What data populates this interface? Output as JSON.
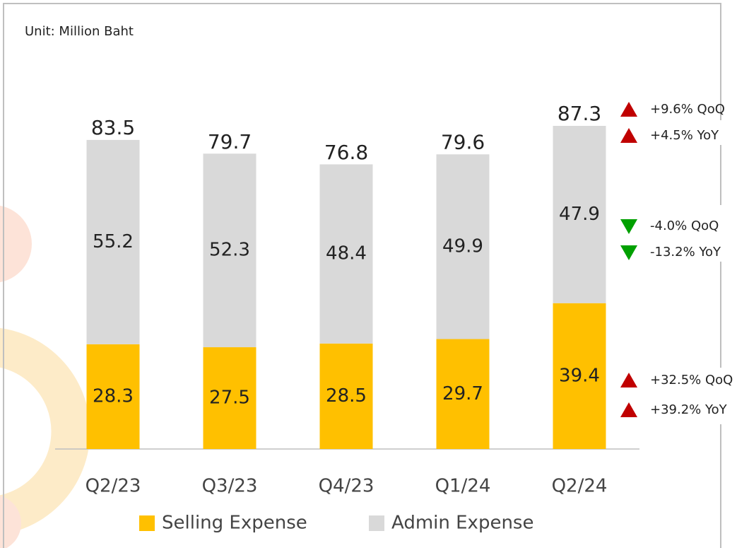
{
  "chart_data": {
    "type": "stacked_bar",
    "subtitle": "Unit: Million Baht",
    "categories": [
      "Q2/23",
      "Q3/23",
      "Q4/23",
      "Q1/24",
      "Q2/24"
    ],
    "series": [
      {
        "name": "Selling Expense",
        "color": "#FFC000",
        "values": [
          28.3,
          27.5,
          28.5,
          29.7,
          39.4
        ]
      },
      {
        "name": "Admin Expense",
        "color": "#D9D9D9",
        "values": [
          55.2,
          52.3,
          48.4,
          49.9,
          47.9
        ]
      }
    ],
    "totals": [
      83.5,
      79.7,
      76.8,
      79.6,
      87.3
    ],
    "annotations": [
      {
        "text": "+9.6% QoQ",
        "direction": "up",
        "color": "#C00000"
      },
      {
        "text": "+4.5% YoY",
        "direction": "up",
        "color": "#C00000"
      },
      {
        "text": "-4.0% QoQ",
        "direction": "down",
        "color": "#00A000"
      },
      {
        "text": "-13.2% YoY",
        "direction": "down",
        "color": "#00A000"
      },
      {
        "text": "+32.5% QoQ",
        "direction": "up",
        "color": "#C00000"
      },
      {
        "text": "+39.2% YoY",
        "direction": "up",
        "color": "#C00000"
      }
    ],
    "legend": "bottom"
  }
}
